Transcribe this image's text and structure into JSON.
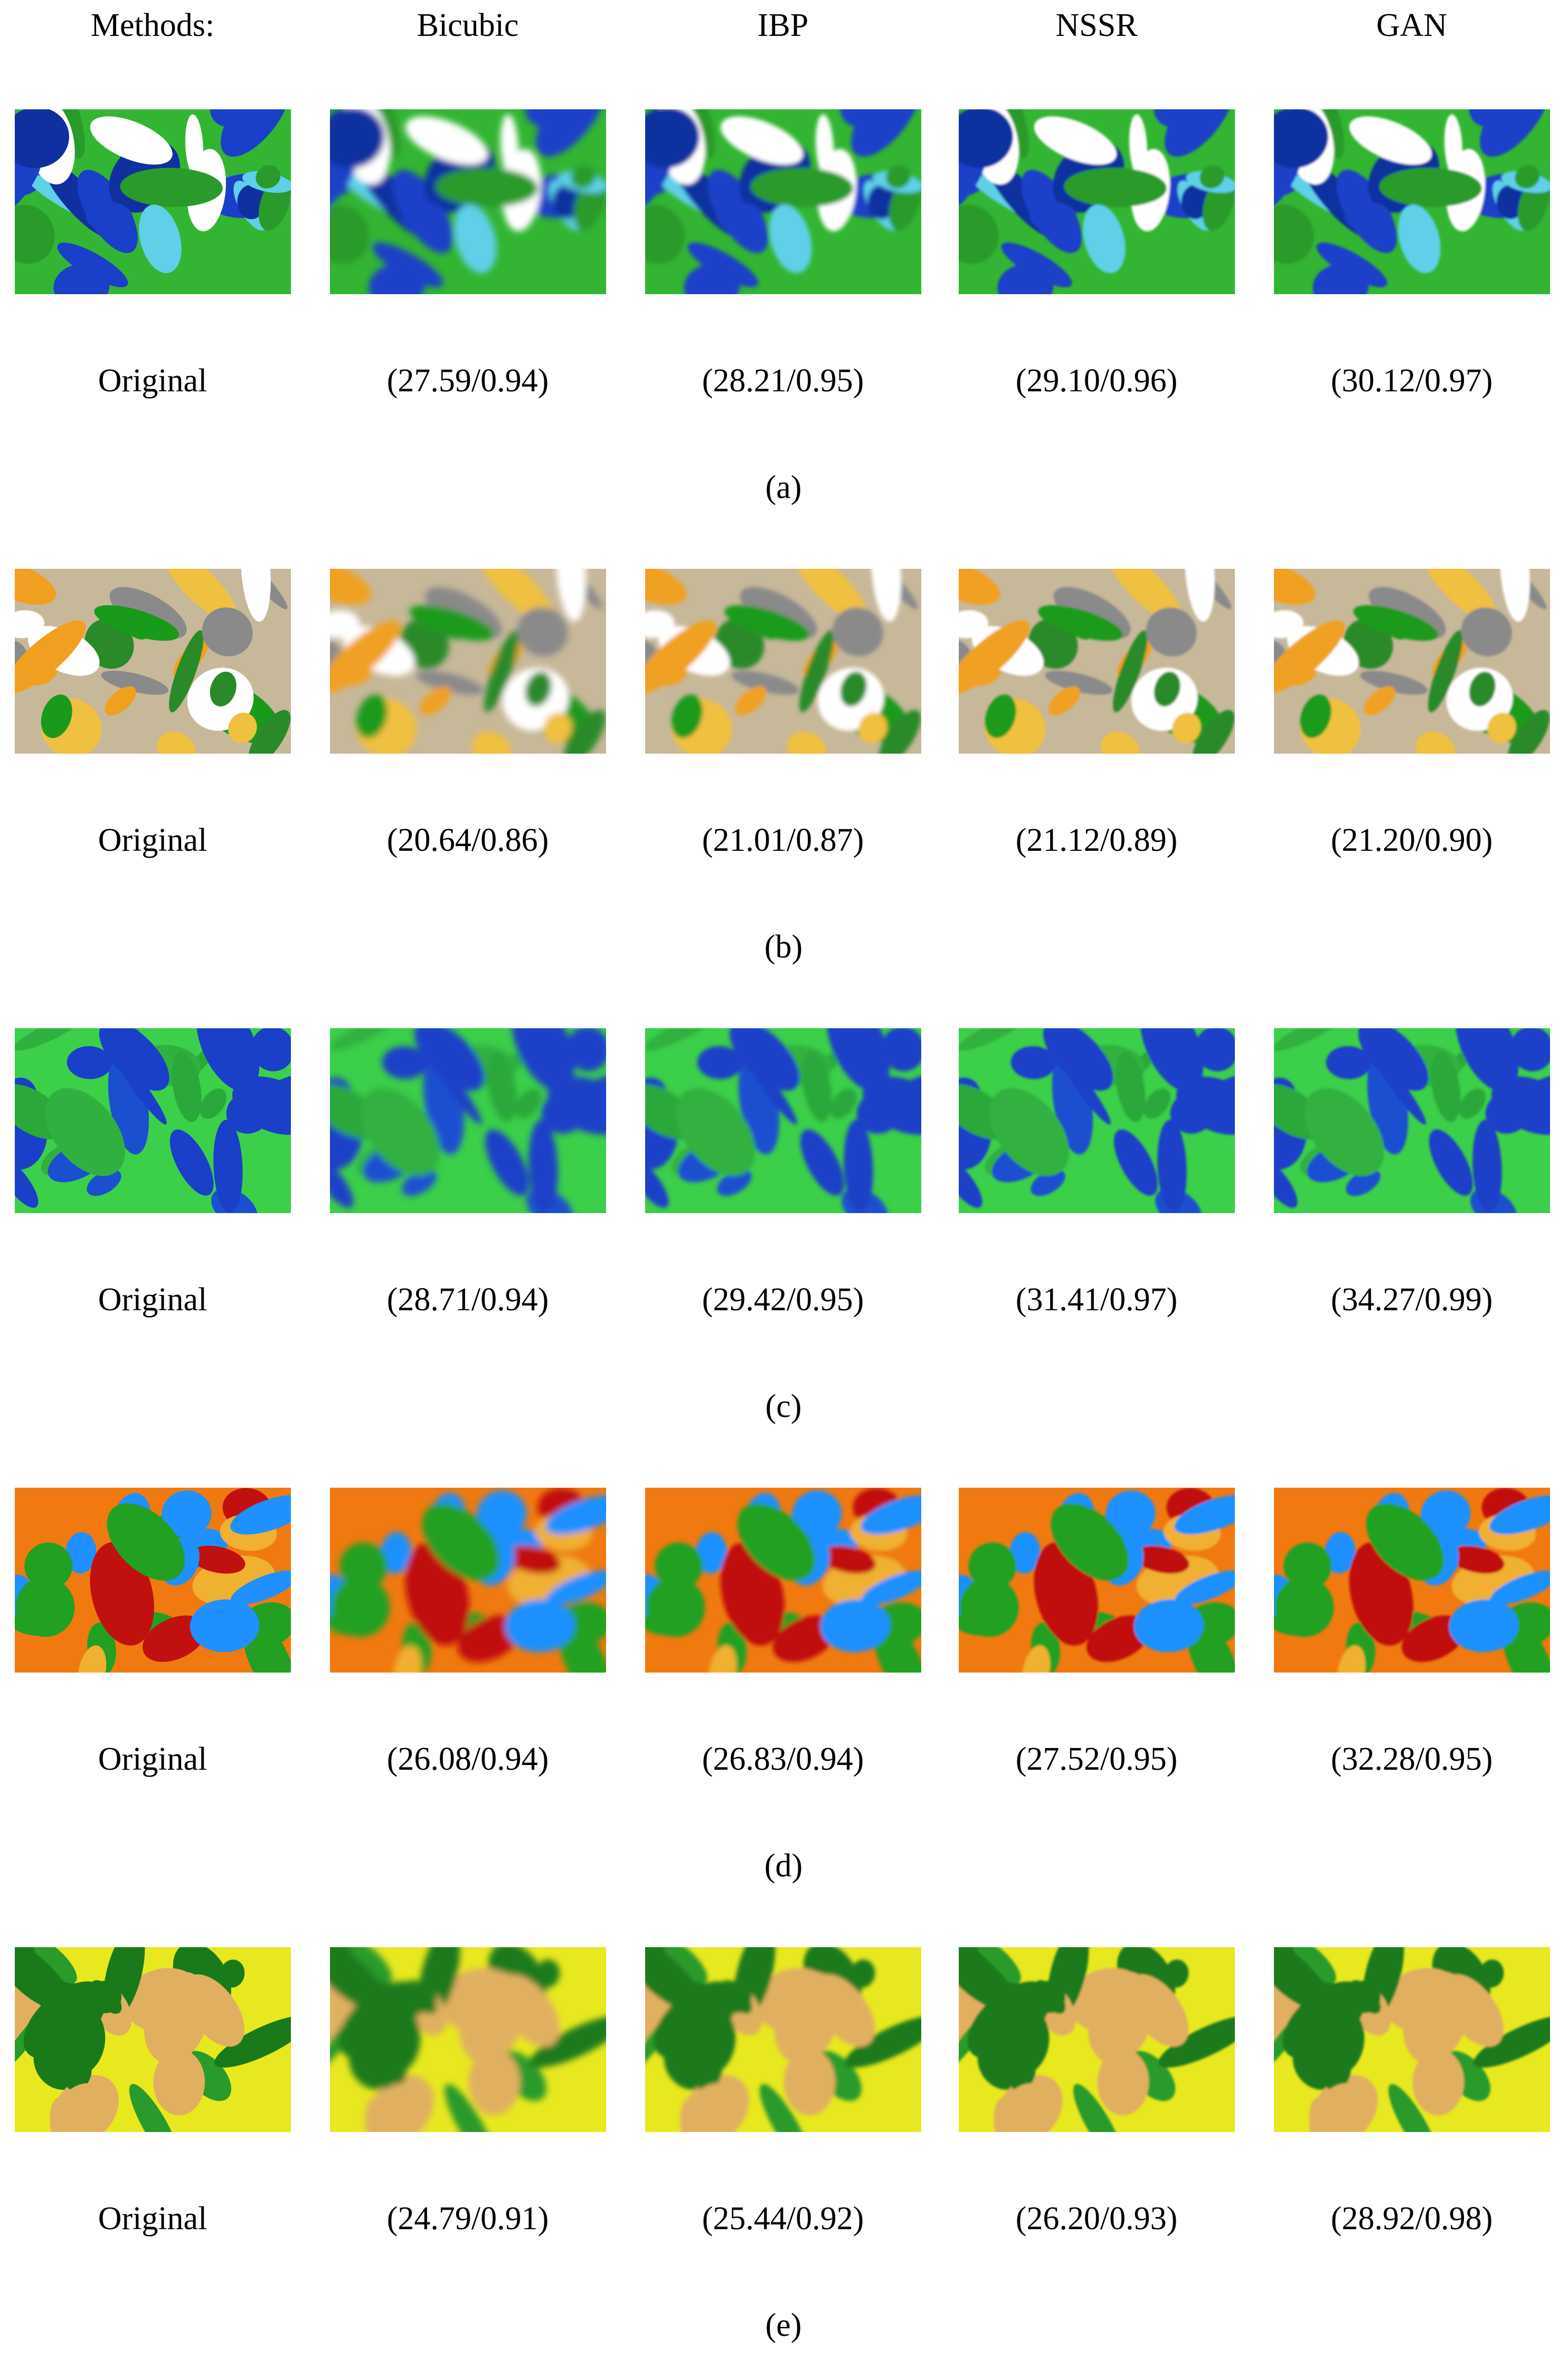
{
  "header": [
    "Methods:",
    "Bicubic",
    "IBP",
    "NSSR",
    "GAN"
  ],
  "groups": [
    {
      "captions": [
        "Original",
        "(27.59/0.94)",
        "(28.21/0.95)",
        "(29.10/0.96)",
        "(30.12/0.97)"
      ],
      "label": "(a)"
    },
    {
      "captions": [
        "Original",
        "(20.64/0.86)",
        "(21.01/0.87)",
        "(21.12/0.89)",
        "(21.20/0.90)"
      ],
      "label": "(b)"
    },
    {
      "captions": [
        "Original",
        "(28.71/0.94)",
        "(29.42/0.95)",
        "(31.41/0.97)",
        "(34.27/0.99)"
      ],
      "label": "(c)"
    },
    {
      "captions": [
        "Original",
        "(26.08/0.94)",
        "(26.83/0.94)",
        "(27.52/0.95)",
        "(32.28/0.95)"
      ],
      "label": "(d)"
    },
    {
      "captions": [
        "Original",
        "(24.79/0.91)",
        "(25.44/0.92)",
        "(26.20/0.93)",
        "(28.92/0.98)"
      ],
      "label": "(e)"
    }
  ]
}
